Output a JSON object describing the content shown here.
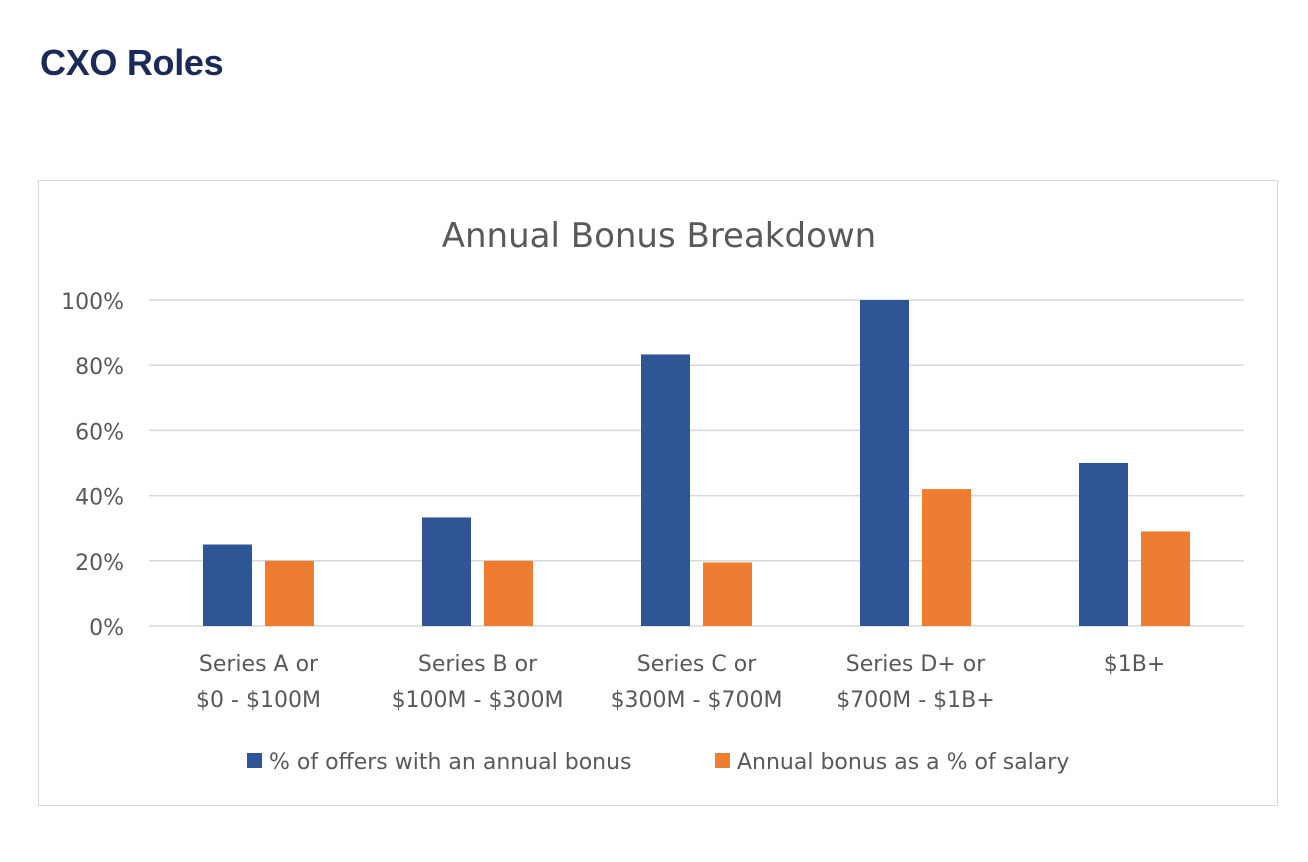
{
  "page": {
    "heading": "CXO Roles"
  },
  "chart_data": {
    "type": "bar",
    "title": "Annual Bonus Breakdown",
    "categories": [
      [
        "Series A or",
        "$0 - $100M"
      ],
      [
        "Series B or",
        "$100M - $300M"
      ],
      [
        "Series C or",
        "$300M - $700M"
      ],
      [
        "Series D+ or",
        "$700M - $1B+"
      ],
      [
        "$1B+"
      ]
    ],
    "series": [
      {
        "name": "% of offers with an annual bonus",
        "color": "#2f5597",
        "values": [
          25,
          33.3,
          83.3,
          100,
          50
        ]
      },
      {
        "name": "Annual bonus as a % of salary",
        "color": "#ed7d31",
        "values": [
          20,
          20,
          19.5,
          42,
          29
        ]
      }
    ],
    "y_ticks": [
      "0%",
      "20%",
      "40%",
      "60%",
      "80%",
      "100%"
    ],
    "ylim": [
      0,
      100
    ],
    "grid": true,
    "legend_position": "bottom"
  }
}
